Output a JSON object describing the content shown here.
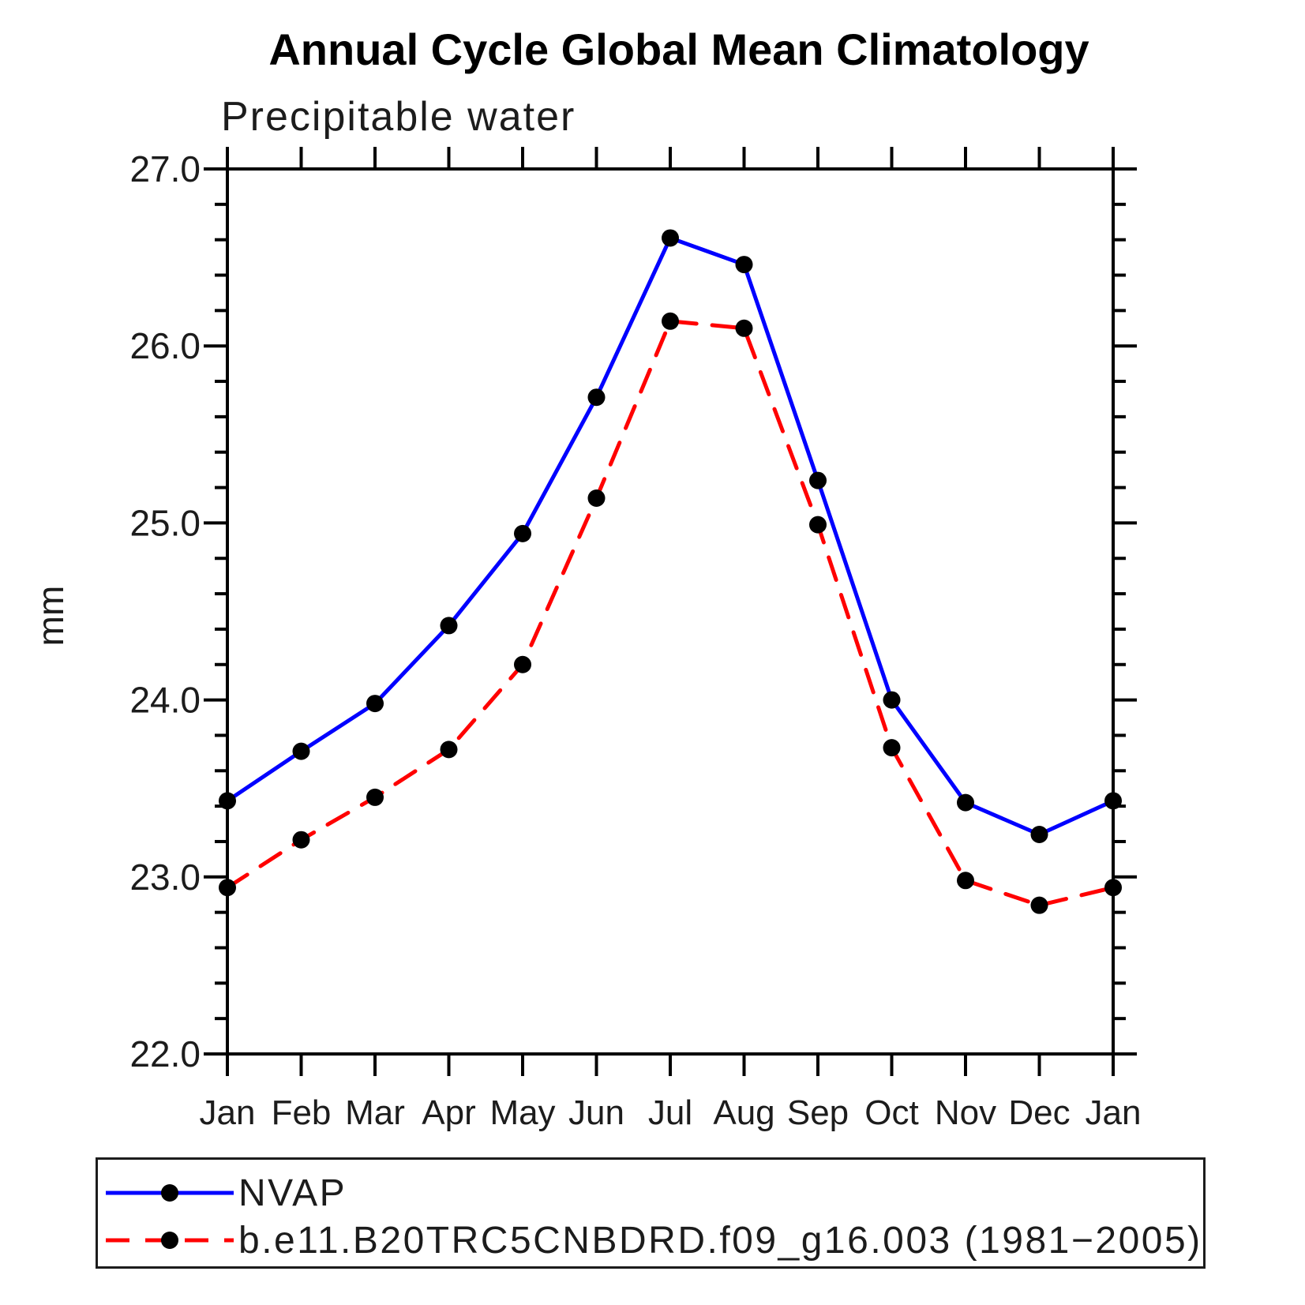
{
  "title": "Annual Cycle Global Mean Climatology",
  "subtitle": "Precipitable water",
  "y_axis": {
    "label": "mm",
    "tick_values": [
      27.0,
      26.0,
      25.0,
      24.0,
      23.0,
      22.0
    ],
    "tick_labels": [
      "27.0",
      "26.0",
      "25.0",
      "24.0",
      "23.0",
      "22.0"
    ],
    "minor_step": 0.2
  },
  "x_axis": {
    "labels": [
      "Jan",
      "Feb",
      "Mar",
      "Apr",
      "May",
      "Jun",
      "Jul",
      "Aug",
      "Sep",
      "Oct",
      "Nov",
      "Dec",
      "Jan"
    ]
  },
  "legend": {
    "position": "bottom",
    "entries": [
      {
        "label": "NVAP",
        "style": "solid",
        "color": "#0000ff"
      },
      {
        "label": "b.e11.B20TRC5CNBDRD.f09_g16.003 (1981−2005)",
        "style": "dashed",
        "color": "#ff0000"
      }
    ]
  },
  "colors": {
    "nvap_line": "#0000ff",
    "model_line": "#ff0000",
    "marker": "#000000",
    "axis": "#000000",
    "text": "#1c1c1c"
  },
  "chart_data": {
    "type": "line",
    "title": "Annual Cycle Global Mean Climatology",
    "subtitle": "Precipitable water",
    "xlabel": "",
    "ylabel": "mm",
    "ylim": [
      22.0,
      27.0
    ],
    "yticks": [
      22.0,
      23.0,
      24.0,
      25.0,
      26.0,
      27.0
    ],
    "minor_tick_step": 0.2,
    "grid": false,
    "legend_position": "bottom",
    "categories": [
      "Jan",
      "Feb",
      "Mar",
      "Apr",
      "May",
      "Jun",
      "Jul",
      "Aug",
      "Sep",
      "Oct",
      "Nov",
      "Dec",
      "Jan"
    ],
    "series": [
      {
        "name": "NVAP",
        "color": "#0000ff",
        "line_style": "solid",
        "marker": "filled-circle",
        "marker_color": "#000000",
        "values": [
          23.43,
          23.71,
          23.98,
          24.42,
          24.94,
          25.71,
          26.61,
          26.46,
          25.24,
          24.0,
          23.42,
          23.24,
          23.43
        ]
      },
      {
        "name": "b.e11.B20TRC5CNBDRD.f09_g16.003 (1981−2005)",
        "color": "#ff0000",
        "line_style": "dashed",
        "marker": "filled-circle",
        "marker_color": "#000000",
        "values": [
          22.94,
          23.21,
          23.45,
          23.72,
          24.2,
          25.14,
          26.14,
          26.1,
          24.99,
          23.73,
          22.98,
          22.84,
          22.94
        ]
      }
    ]
  }
}
